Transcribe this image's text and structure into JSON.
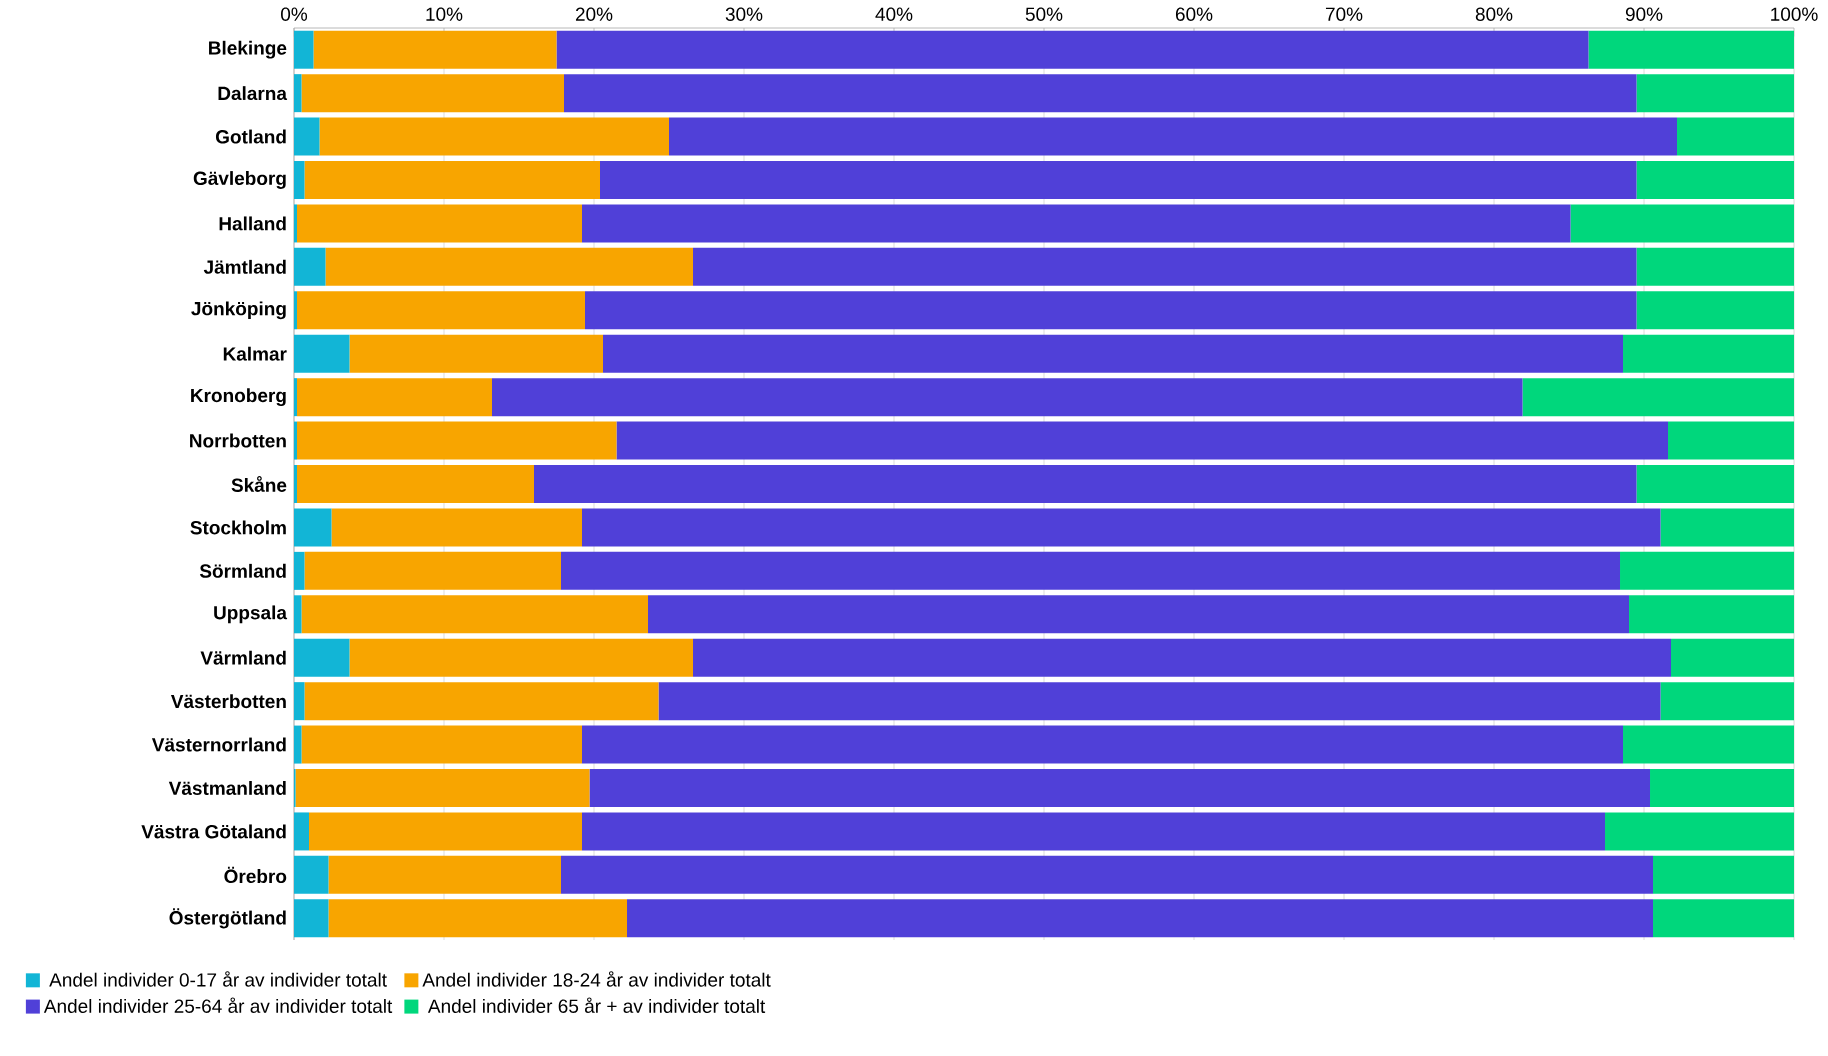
{
  "chart_data": {
    "type": "bar",
    "orientation": "horizontal",
    "stacked": true,
    "grid": "x",
    "legend": "bottom",
    "categories": [
      "Blekinge",
      "Dalarna",
      "Gotland",
      "Gävleborg",
      "Halland",
      "Jämtland",
      "Jönköping",
      "Kalmar",
      "Kronoberg",
      "Norrbotten",
      "Skåne",
      "Stockholm",
      "Sörmland",
      "Uppsala",
      "Värmland",
      "Västerbotten",
      "Västernorrland",
      "Västmanland",
      "Västra Götaland",
      "Örebro",
      "Östergötland"
    ],
    "xlim": [
      0,
      100
    ],
    "xticks": [
      {
        "value": 0,
        "label": "0%"
      },
      {
        "value": 10,
        "label": "10%"
      },
      {
        "value": 20,
        "label": "20%"
      },
      {
        "value": 30,
        "label": "30%"
      },
      {
        "value": 40,
        "label": "40%"
      },
      {
        "value": 50,
        "label": "50%"
      },
      {
        "value": 60,
        "label": "60%"
      },
      {
        "value": 70,
        "label": "70%"
      },
      {
        "value": 80,
        "label": "80%"
      },
      {
        "value": 90,
        "label": "90%"
      },
      {
        "value": 100,
        "label": "100%"
      }
    ],
    "series": [
      {
        "name": "Andel individer 0-17 år av individer totalt",
        "color": "#12b5d6",
        "values": [
          1.3,
          0.5,
          1.7,
          0.7,
          0.2,
          2.1,
          0.2,
          3.7,
          0.2,
          0.2,
          0.2,
          2.5,
          0.7,
          0.5,
          3.7,
          0.7,
          0.5,
          0.1,
          1.0,
          2.3,
          2.3
        ]
      },
      {
        "name": "Andel individer 18-24 år av individer totalt",
        "color": "#f8a500",
        "values": [
          16.2,
          17.5,
          23.3,
          19.7,
          19.0,
          24.5,
          19.2,
          16.9,
          13.0,
          21.3,
          15.8,
          16.7,
          17.1,
          23.1,
          22.9,
          23.6,
          18.7,
          19.6,
          18.2,
          15.5,
          19.9
        ]
      },
      {
        "name": "Andel individer 25-64 år av individer totalt",
        "color": "#5040d8",
        "values": [
          68.8,
          71.5,
          67.2,
          69.1,
          65.9,
          62.9,
          70.1,
          68.0,
          68.7,
          70.1,
          73.5,
          71.9,
          70.6,
          65.4,
          65.2,
          66.8,
          69.4,
          70.7,
          68.2,
          72.8,
          68.4
        ]
      },
      {
        "name": "Andel individer 65 år + av individer totalt",
        "color": "#00d77c",
        "values": [
          13.7,
          10.5,
          7.8,
          10.5,
          14.9,
          10.5,
          10.5,
          11.4,
          18.1,
          8.4,
          10.5,
          8.9,
          11.6,
          11.0,
          8.2,
          8.9,
          11.4,
          9.6,
          12.6,
          9.4,
          9.4
        ]
      }
    ]
  }
}
